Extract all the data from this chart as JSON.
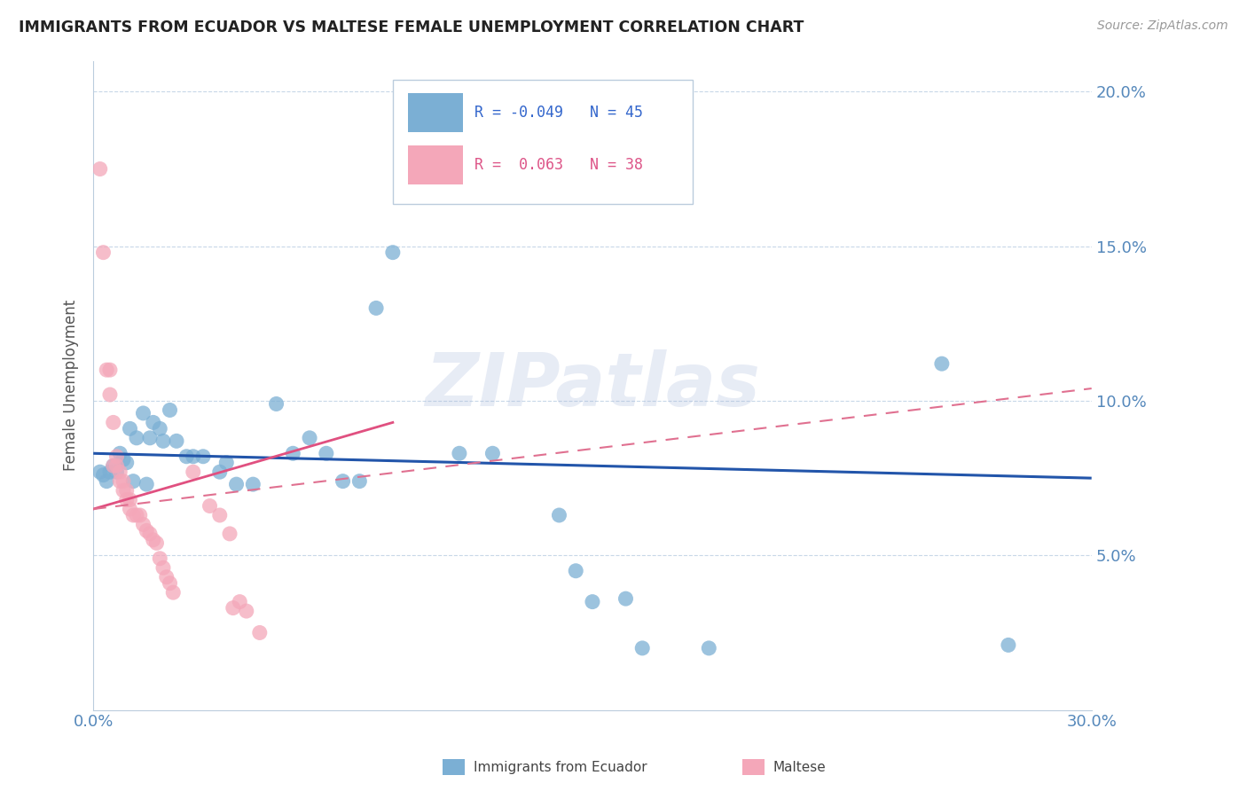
{
  "title": "IMMIGRANTS FROM ECUADOR VS MALTESE FEMALE UNEMPLOYMENT CORRELATION CHART",
  "source": "Source: ZipAtlas.com",
  "ylabel": "Female Unemployment",
  "xlim": [
    0.0,
    0.3
  ],
  "ylim": [
    0.0,
    0.21
  ],
  "blue_color": "#7BAFD4",
  "pink_color": "#F4A7B9",
  "trend_blue_color": "#2255AA",
  "trend_pink_solid_color": "#E05080",
  "trend_pink_dash_color": "#E07090",
  "axis_color": "#5588BB",
  "grid_color": "#C8D8E8",
  "watermark": "ZIPatlas",
  "blue_points": [
    [
      0.002,
      0.077
    ],
    [
      0.003,
      0.076
    ],
    [
      0.004,
      0.074
    ],
    [
      0.005,
      0.077
    ],
    [
      0.006,
      0.079
    ],
    [
      0.007,
      0.077
    ],
    [
      0.008,
      0.083
    ],
    [
      0.009,
      0.081
    ],
    [
      0.01,
      0.08
    ],
    [
      0.011,
      0.091
    ],
    [
      0.012,
      0.074
    ],
    [
      0.013,
      0.088
    ],
    [
      0.015,
      0.096
    ],
    [
      0.016,
      0.073
    ],
    [
      0.017,
      0.088
    ],
    [
      0.018,
      0.093
    ],
    [
      0.02,
      0.091
    ],
    [
      0.021,
      0.087
    ],
    [
      0.023,
      0.097
    ],
    [
      0.025,
      0.087
    ],
    [
      0.028,
      0.082
    ],
    [
      0.03,
      0.082
    ],
    [
      0.033,
      0.082
    ],
    [
      0.038,
      0.077
    ],
    [
      0.04,
      0.08
    ],
    [
      0.043,
      0.073
    ],
    [
      0.048,
      0.073
    ],
    [
      0.055,
      0.099
    ],
    [
      0.06,
      0.083
    ],
    [
      0.065,
      0.088
    ],
    [
      0.07,
      0.083
    ],
    [
      0.075,
      0.074
    ],
    [
      0.08,
      0.074
    ],
    [
      0.085,
      0.13
    ],
    [
      0.09,
      0.148
    ],
    [
      0.11,
      0.083
    ],
    [
      0.12,
      0.083
    ],
    [
      0.14,
      0.063
    ],
    [
      0.145,
      0.045
    ],
    [
      0.15,
      0.035
    ],
    [
      0.16,
      0.036
    ],
    [
      0.165,
      0.02
    ],
    [
      0.185,
      0.02
    ],
    [
      0.255,
      0.112
    ],
    [
      0.275,
      0.021
    ]
  ],
  "pink_points": [
    [
      0.002,
      0.175
    ],
    [
      0.003,
      0.148
    ],
    [
      0.004,
      0.11
    ],
    [
      0.005,
      0.11
    ],
    [
      0.005,
      0.102
    ],
    [
      0.006,
      0.093
    ],
    [
      0.006,
      0.079
    ],
    [
      0.007,
      0.082
    ],
    [
      0.007,
      0.079
    ],
    [
      0.008,
      0.077
    ],
    [
      0.008,
      0.074
    ],
    [
      0.009,
      0.074
    ],
    [
      0.009,
      0.071
    ],
    [
      0.01,
      0.071
    ],
    [
      0.01,
      0.068
    ],
    [
      0.011,
      0.068
    ],
    [
      0.011,
      0.065
    ],
    [
      0.012,
      0.063
    ],
    [
      0.013,
      0.063
    ],
    [
      0.014,
      0.063
    ],
    [
      0.015,
      0.06
    ],
    [
      0.016,
      0.058
    ],
    [
      0.017,
      0.057
    ],
    [
      0.018,
      0.055
    ],
    [
      0.019,
      0.054
    ],
    [
      0.02,
      0.049
    ],
    [
      0.021,
      0.046
    ],
    [
      0.022,
      0.043
    ],
    [
      0.023,
      0.041
    ],
    [
      0.024,
      0.038
    ],
    [
      0.03,
      0.077
    ],
    [
      0.035,
      0.066
    ],
    [
      0.038,
      0.063
    ],
    [
      0.041,
      0.057
    ],
    [
      0.042,
      0.033
    ],
    [
      0.044,
      0.035
    ],
    [
      0.046,
      0.032
    ],
    [
      0.05,
      0.025
    ]
  ]
}
